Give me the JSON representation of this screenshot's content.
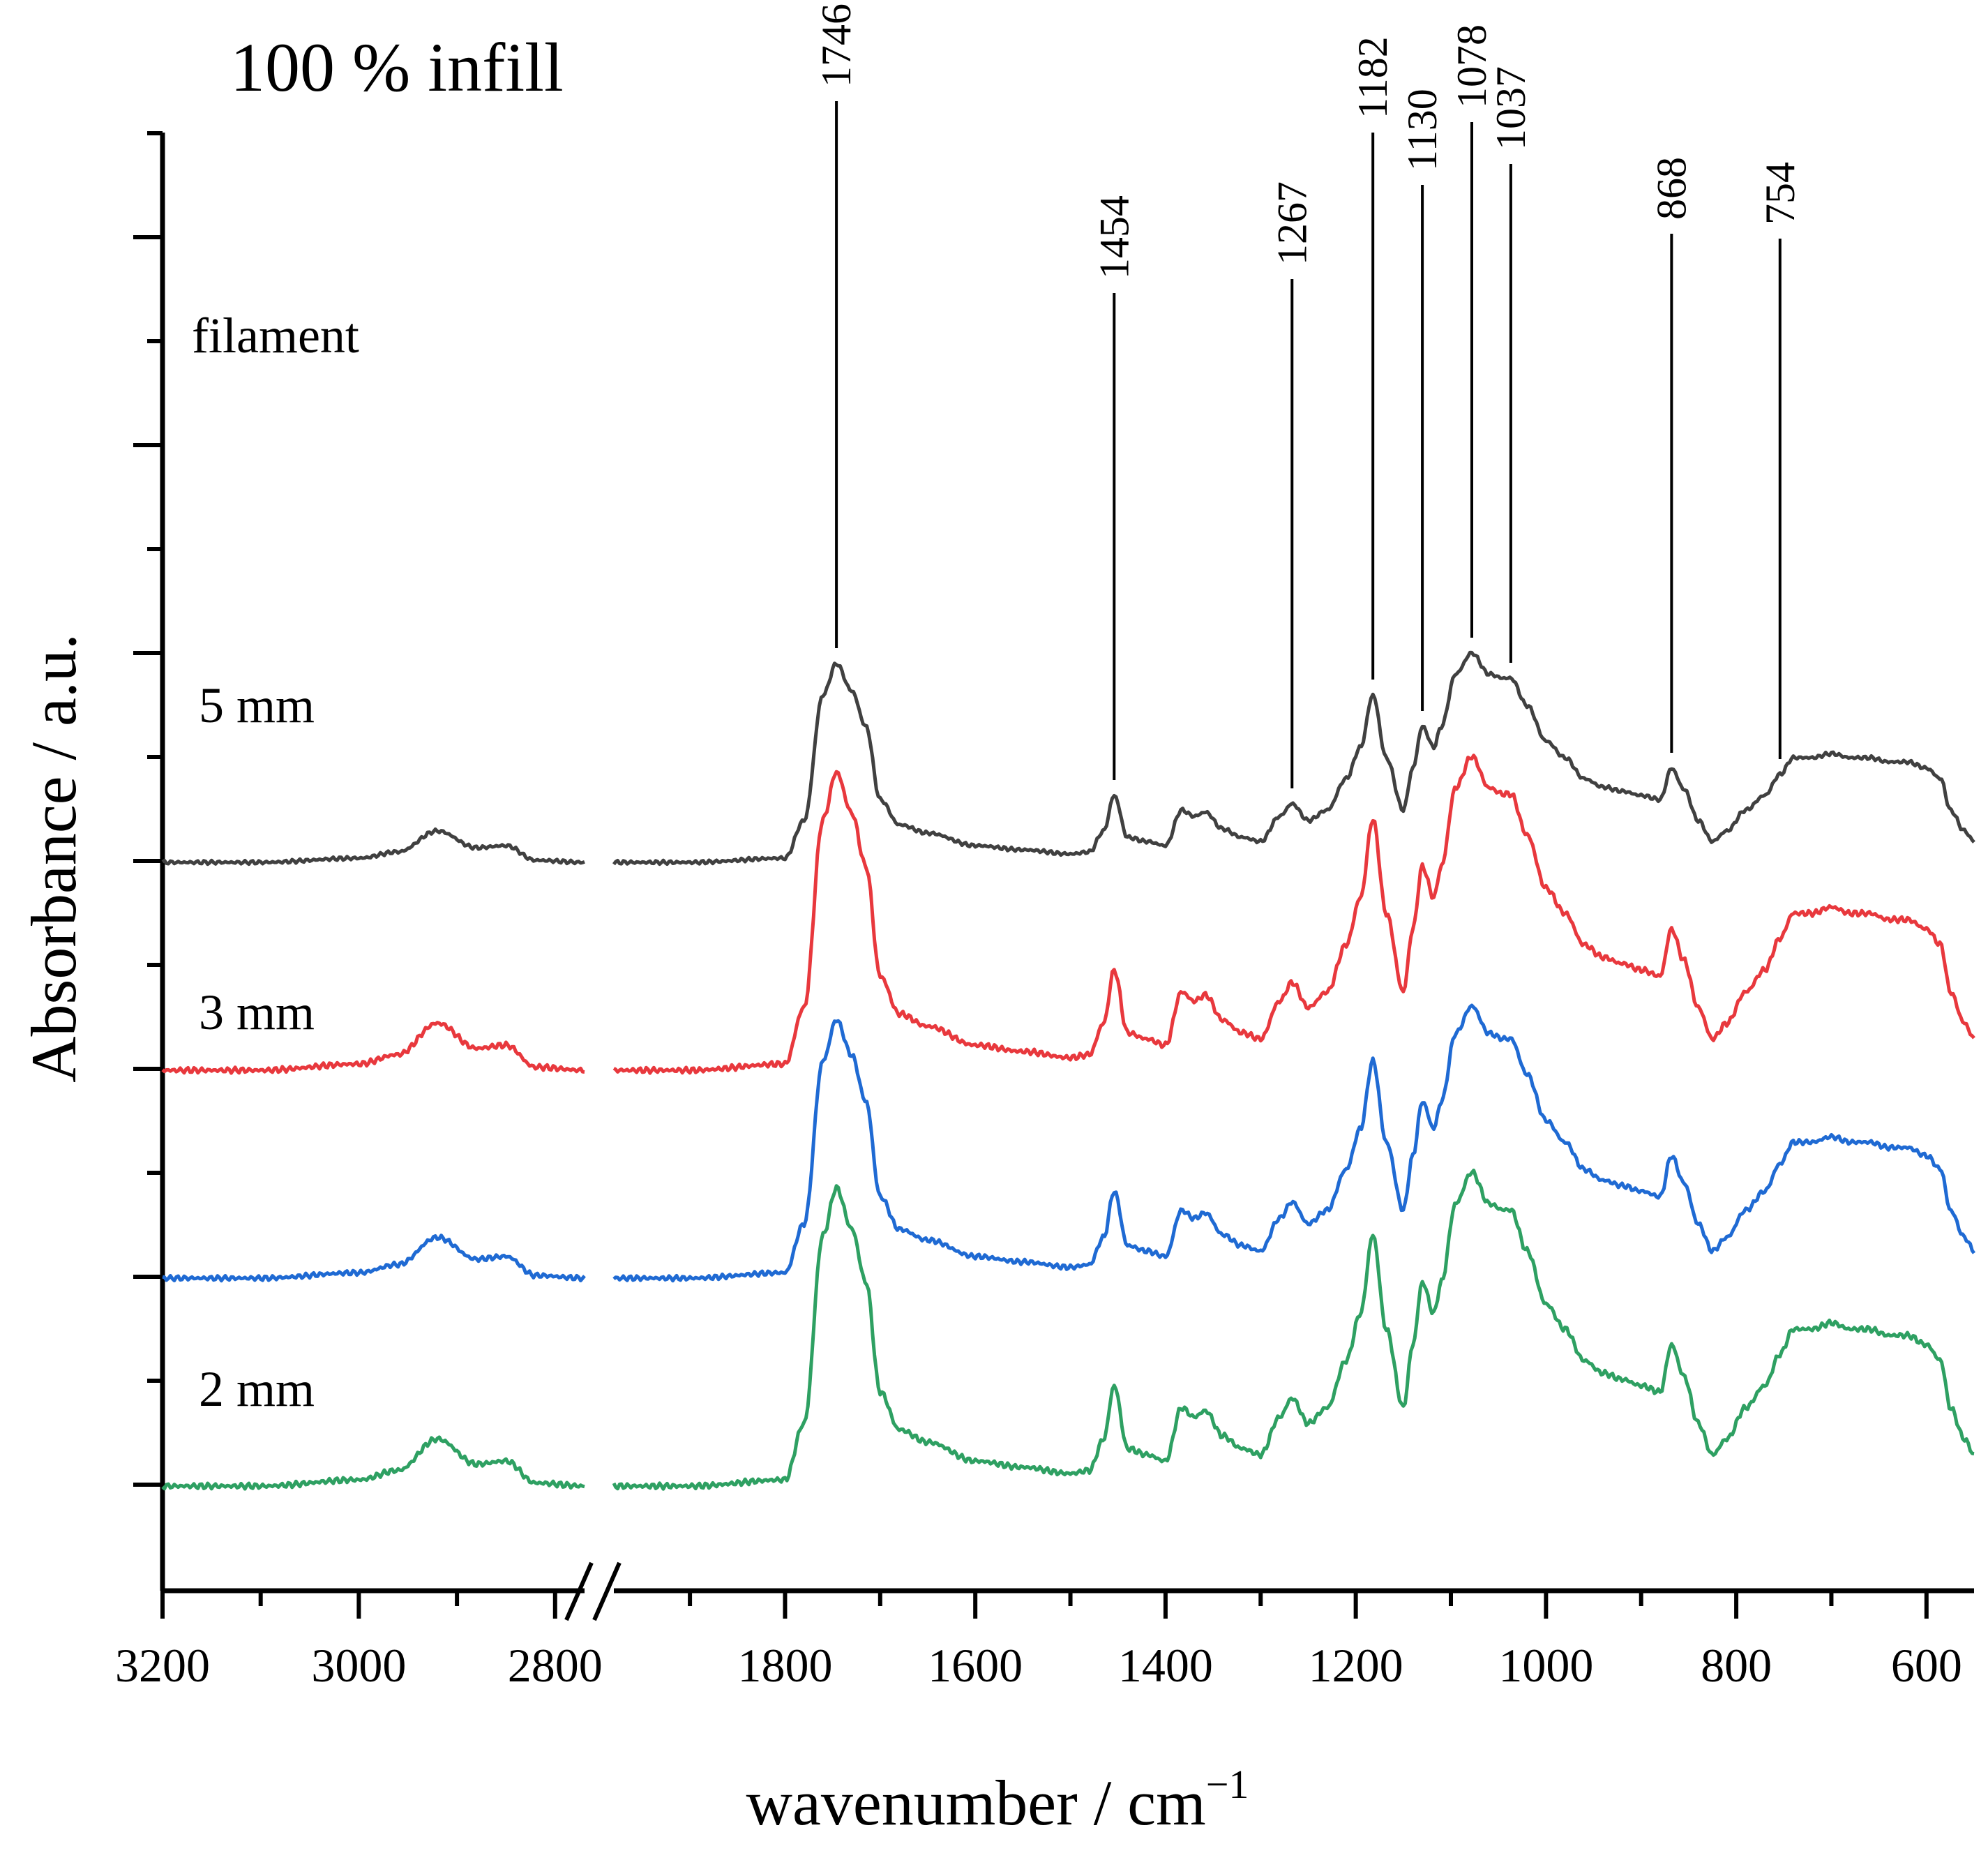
{
  "chart_data": {
    "type": "line",
    "title": "100 % infill",
    "xlabel": "wavenumber / cm",
    "xlabel_superscript": "−1",
    "ylabel": "Absorbance / a.u.",
    "x_axis": {
      "reversed": true,
      "broken": true,
      "segments": [
        {
          "from": 3200,
          "to": 2770,
          "ticks": [
            3200,
            3000,
            2800
          ],
          "minor_step": 100
        },
        {
          "from": 1980,
          "to": 550,
          "ticks": [
            1800,
            1600,
            1400,
            1200,
            1000,
            800,
            600
          ],
          "minor_step": 100
        }
      ],
      "tick_labels": [
        "3200",
        "3000",
        "2800",
        "1800",
        "1600",
        "1400",
        "1200",
        "1000",
        "800",
        "600"
      ]
    },
    "y_axis": {
      "ticks_labeled": false,
      "major_ticks": 7
    },
    "peak_labels": [
      "1746",
      "1454",
      "1267",
      "1182",
      "1130",
      "1078",
      "1037",
      "868",
      "754"
    ],
    "peak_positions": [
      1746,
      1454,
      1267,
      1182,
      1130,
      1078,
      1037,
      868,
      754
    ],
    "series": [
      {
        "name": "filament",
        "color": "#404040",
        "offset": 3.0,
        "scale": 1.0
      },
      {
        "name": "5 mm",
        "color": "#e8383d",
        "offset": 2.0,
        "scale": 1.5
      },
      {
        "name": "3 mm",
        "color": "#1f6ad3",
        "offset": 1.0,
        "scale": 1.3
      },
      {
        "name": "2 mm",
        "color": "#2ea062",
        "offset": 0.0,
        "scale": 1.5
      }
    ],
    "spectrum_shape": {
      "x": [
        3200,
        3100,
        3000,
        2960,
        2920,
        2880,
        2850,
        2820,
        2770,
        1980,
        1900,
        1800,
        1780,
        1760,
        1746,
        1730,
        1715,
        1700,
        1680,
        1650,
        1600,
        1550,
        1500,
        1480,
        1465,
        1454,
        1440,
        1420,
        1400,
        1383,
        1370,
        1358,
        1340,
        1320,
        1300,
        1280,
        1267,
        1250,
        1230,
        1210,
        1195,
        1182,
        1168,
        1150,
        1140,
        1130,
        1118,
        1110,
        1095,
        1078,
        1060,
        1045,
        1037,
        1020,
        1000,
        980,
        960,
        940,
        920,
        900,
        880,
        868,
        855,
        840,
        825,
        810,
        790,
        770,
        754,
        740,
        720,
        700,
        680,
        660,
        640,
        620,
        600,
        585,
        575,
        560,
        550
      ],
      "y": [
        0.0,
        0.0,
        0.02,
        0.05,
        0.15,
        0.07,
        0.08,
        0.01,
        0.0,
        0.0,
        0.0,
        0.02,
        0.2,
        0.8,
        0.95,
        0.82,
        0.65,
        0.3,
        0.18,
        0.14,
        0.08,
        0.06,
        0.04,
        0.05,
        0.15,
        0.32,
        0.12,
        0.1,
        0.08,
        0.25,
        0.22,
        0.24,
        0.16,
        0.12,
        0.1,
        0.22,
        0.28,
        0.2,
        0.25,
        0.4,
        0.55,
        0.8,
        0.5,
        0.25,
        0.45,
        0.65,
        0.55,
        0.65,
        0.9,
        1.0,
        0.9,
        0.88,
        0.88,
        0.75,
        0.58,
        0.5,
        0.4,
        0.36,
        0.34,
        0.32,
        0.3,
        0.45,
        0.35,
        0.2,
        0.1,
        0.15,
        0.25,
        0.32,
        0.42,
        0.5,
        0.5,
        0.52,
        0.5,
        0.5,
        0.48,
        0.48,
        0.45,
        0.4,
        0.25,
        0.15,
        0.1
      ]
    }
  }
}
